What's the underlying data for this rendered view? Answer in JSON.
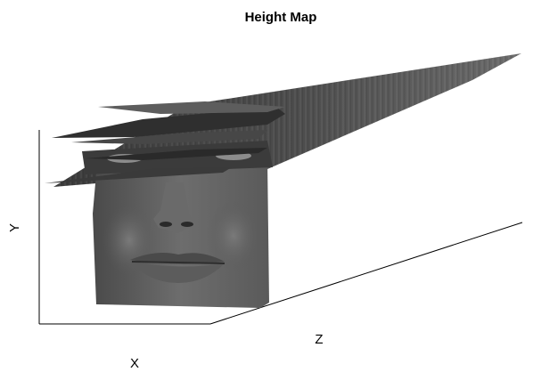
{
  "chart_data": {
    "type": "surface",
    "title": "Height Map",
    "xlabel": "X",
    "ylabel": "Y",
    "zlabel": "Z",
    "grid": false,
    "legend": "none",
    "colormap": "gray",
    "surface_content": "face height map"
  },
  "colors": {
    "background": "#ffffff",
    "axis": "#000000",
    "surface_dark": "#2f2f2f",
    "surface_mid": "#5a5a5a",
    "surface_light": "#8a8a8a"
  }
}
